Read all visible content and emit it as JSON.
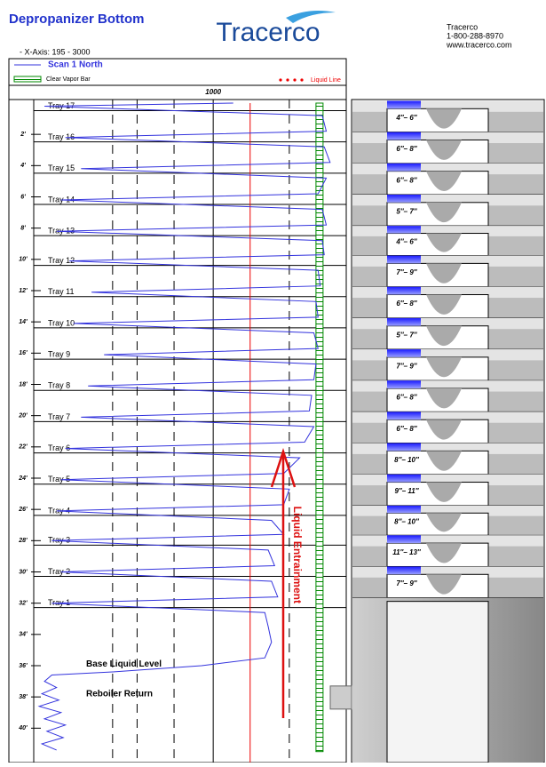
{
  "header": {
    "title": "Depropanizer Bottom",
    "logo": "Tracerco",
    "contact": [
      "Tracerco",
      "1-800-288-8970",
      "www.tracerco.com"
    ],
    "axis_note": "-   X-Axis: 195 - 3000"
  },
  "chart_data": {
    "type": "line",
    "xscale": "log",
    "xlim": [
      195,
      3000
    ],
    "xticks": [
      1000
    ],
    "xgrid": [
      400,
      500,
      700,
      1000,
      2000
    ],
    "ylim": [
      0,
      42.2
    ],
    "yticks": [
      {
        "value": 2,
        "label": "2'"
      },
      {
        "value": 4,
        "label": "4'"
      },
      {
        "value": 6,
        "label": "6'"
      },
      {
        "value": 8,
        "label": "8'"
      },
      {
        "value": 10,
        "label": "10'"
      },
      {
        "value": 12,
        "label": "12'"
      },
      {
        "value": 14,
        "label": "14'"
      },
      {
        "value": 16,
        "label": "16'"
      },
      {
        "value": 18,
        "label": "18'"
      },
      {
        "value": 20,
        "label": "20'"
      },
      {
        "value": 22,
        "label": "22'"
      },
      {
        "value": 24,
        "label": "24'"
      },
      {
        "value": 26,
        "label": "26'"
      },
      {
        "value": 28,
        "label": "28'"
      },
      {
        "value": 30,
        "label": "30'"
      },
      {
        "value": 32,
        "label": "32'"
      },
      {
        "value": 34,
        "label": "34'"
      },
      {
        "value": 36,
        "label": "36'"
      },
      {
        "value": 38,
        "label": "38'"
      },
      {
        "value": 40,
        "label": "40'"
      }
    ],
    "series": [
      {
        "name": "Scan 1 North",
        "color": "#3333dd",
        "depth": [
          0,
          0.2,
          0.8,
          1.8,
          2.2,
          2.8,
          3.8,
          4.2,
          4.8,
          5.8,
          6.2,
          6.8,
          7.8,
          8.2,
          8.8,
          9.7,
          10.1,
          10.7,
          11.7,
          12.1,
          12.7,
          13.7,
          14.1,
          14.7,
          15.7,
          16.1,
          16.7,
          17.7,
          18.1,
          18.7,
          19.7,
          20.1,
          20.7,
          21.7,
          22.1,
          22.7,
          23.7,
          24.1,
          24.7,
          25.7,
          26.1,
          26.7,
          27.6,
          28.0,
          28.6,
          29.6,
          30.0,
          30.6,
          31.6,
          32.0,
          32.6,
          33.5,
          34.5,
          35.5,
          36.0,
          36.4,
          36.6,
          37.0,
          37.4,
          37.8,
          38.2,
          38.6,
          39.0,
          39.4,
          39.8,
          40.2,
          40.6,
          41.0,
          41.4
        ],
        "values": [
          1200,
          215,
          2700,
          2800,
          260,
          2750,
          2900,
          300,
          2800,
          2600,
          250,
          2700,
          2800,
          240,
          2700,
          2750,
          270,
          2600,
          2650,
          330,
          2550,
          2600,
          280,
          2500,
          2600,
          370,
          2550,
          2500,
          320,
          2450,
          2400,
          300,
          2500,
          2300,
          260,
          2200,
          1900,
          250,
          2000,
          1900,
          240,
          1700,
          1900,
          230,
          1650,
          1750,
          250,
          1700,
          1800,
          230,
          1600,
          1650,
          1700,
          1600,
          900,
          400,
          230,
          215,
          240,
          210,
          245,
          205,
          250,
          215,
          260,
          220,
          255,
          210,
          240
        ]
      }
    ],
    "liquid_line": {
      "name": "Liquid Line",
      "value": 1400,
      "color": "#ee0000"
    },
    "vapor_bar": {
      "name": "Clear Vapor Bar",
      "xlim": [
        2550,
        2720
      ],
      "color": "#008800"
    },
    "trays": [
      {
        "label": "Tray 17",
        "depth": 0.2
      },
      {
        "label": "Tray 16",
        "depth": 2.2
      },
      {
        "label": "Tray 15",
        "depth": 4.2
      },
      {
        "label": "Tray 14",
        "depth": 6.2
      },
      {
        "label": "Tray 13",
        "depth": 8.2
      },
      {
        "label": "Tray 12",
        "depth": 10.1
      },
      {
        "label": "Tray 11",
        "depth": 12.1
      },
      {
        "label": "Tray 10",
        "depth": 14.1
      },
      {
        "label": "Tray 9",
        "depth": 16.1
      },
      {
        "label": "Tray 8",
        "depth": 18.1
      },
      {
        "label": "Tray 7",
        "depth": 20.1
      },
      {
        "label": "Tray 6",
        "depth": 22.1
      },
      {
        "label": "Tray 5",
        "depth": 24.1
      },
      {
        "label": "Tray 4",
        "depth": 26.1
      },
      {
        "label": "Tray 3",
        "depth": 28.0
      },
      {
        "label": "Tray 2",
        "depth": 30.0
      },
      {
        "label": "Tray 1",
        "depth": 32.0
      }
    ],
    "liquid_heights": [
      "4″– 6″",
      "6″– 8″",
      "6″– 8″",
      "5″– 7″",
      "4″– 6″",
      "7″– 9″",
      "6″– 8″",
      "5″– 7″",
      "7″– 9″",
      "6″– 8″",
      "6″– 8″",
      "8″– 10″",
      "9″– 11″",
      "8″– 10″",
      "11″– 13″",
      "7″– 9″"
    ],
    "annotations": [
      {
        "text": "Base Liquid Level",
        "depth": 35.9
      },
      {
        "text": "Reboiler Return",
        "depth": 37.8
      },
      {
        "text": "Liquid Entrainment",
        "depth": 30.5
      }
    ]
  }
}
